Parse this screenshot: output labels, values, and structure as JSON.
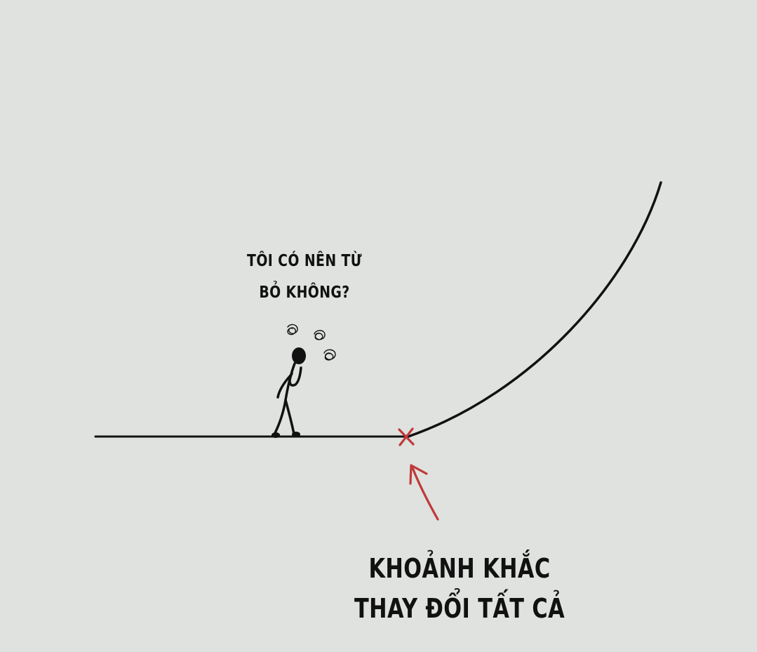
{
  "thought": {
    "line1": "TÔI CÓ NÊN TỪ",
    "line2": "BỎ KHÔNG?"
  },
  "caption": {
    "line1": "KHOẢNH KHẮC",
    "line2": "THAY ĐỔI TẤT CẢ"
  },
  "colors": {
    "background": "#dfe2de",
    "ink": "#111111",
    "accent": "#c0393b"
  },
  "icons": {
    "figure": "stick-figure-thinking-icon",
    "scribbles": "worry-scribble-icon",
    "marker": "cross-marker-icon",
    "arrow": "arrow-up-icon"
  }
}
